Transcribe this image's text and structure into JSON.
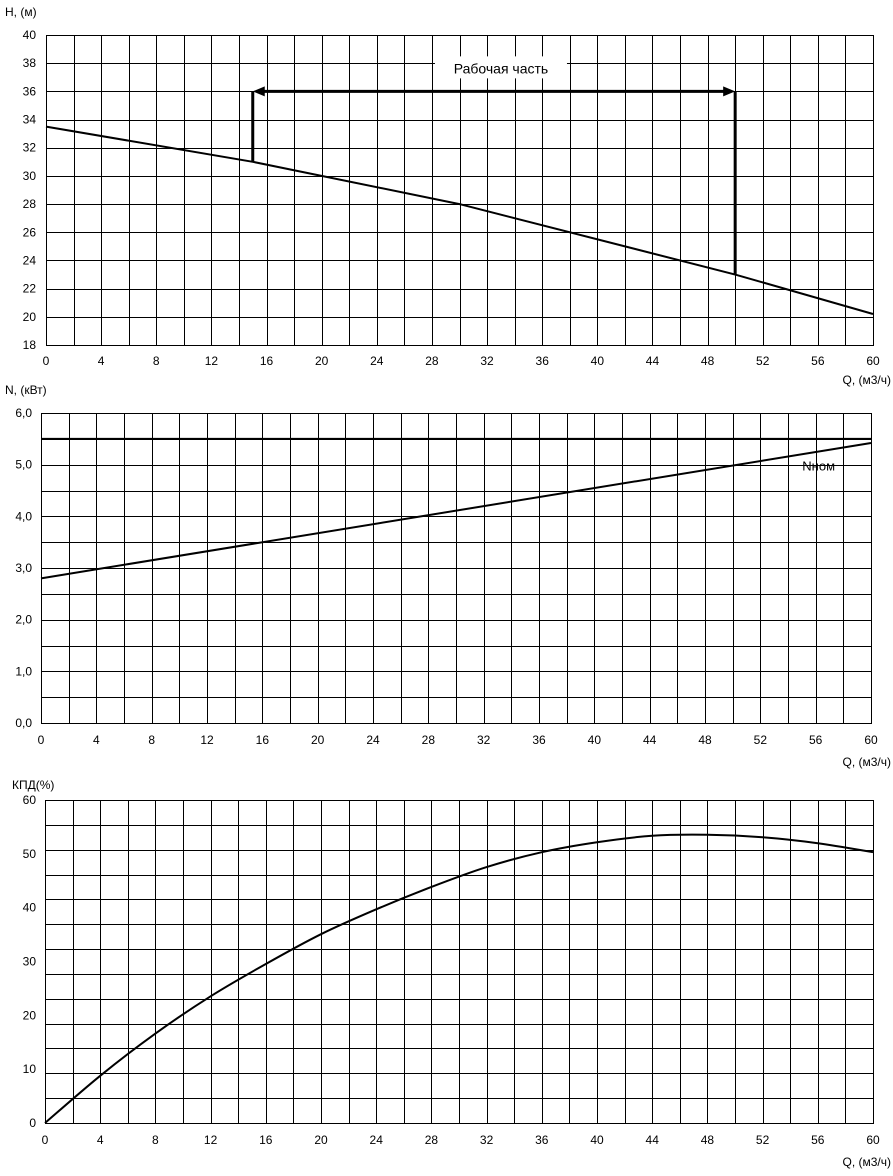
{
  "chart_data": [
    {
      "type": "line",
      "ylabel": "H, (м)",
      "xlabel": "Q, (м3/ч)",
      "xlim": [
        0,
        60
      ],
      "ylim": [
        18,
        40
      ],
      "x_ticks": [
        "0",
        "4",
        "8",
        "12",
        "16",
        "20",
        "24",
        "28",
        "32",
        "36",
        "40",
        "44",
        "48",
        "52",
        "56",
        "60"
      ],
      "y_ticks": [
        "18",
        "20",
        "22",
        "24",
        "26",
        "28",
        "30",
        "32",
        "34",
        "36",
        "38",
        "40"
      ],
      "grid": true,
      "series": [
        {
          "x": [
            0,
            15,
            30,
            50,
            60
          ],
          "y": [
            33.5,
            31.0,
            28.0,
            23.0,
            20.2
          ]
        }
      ],
      "annotation": {
        "text": "Рабочая часть",
        "x_start": 15,
        "x_end": 50,
        "y_level": 36,
        "y_start_curve": 31.0,
        "y_end_curve": 23.0
      }
    },
    {
      "type": "line",
      "ylabel": "N, (кВт)",
      "xlabel": "Q, (м3/ч)",
      "xlim": [
        0,
        60
      ],
      "ylim": [
        0,
        6
      ],
      "x_ticks": [
        "0",
        "4",
        "8",
        "12",
        "16",
        "20",
        "24",
        "28",
        "32",
        "36",
        "40",
        "44",
        "48",
        "52",
        "56",
        "60"
      ],
      "y_ticks": [
        "0,0",
        "1,0",
        "2,0",
        "3,0",
        "4,0",
        "5,0",
        "6,0"
      ],
      "grid": true,
      "series": [
        {
          "x": [
            0,
            60
          ],
          "y": [
            2.8,
            5.42
          ]
        },
        {
          "name": "Nном",
          "x": [
            0,
            60
          ],
          "y": [
            5.5,
            5.5
          ]
        }
      ]
    },
    {
      "type": "line",
      "ylabel": "КПД(%)",
      "xlabel": "Q, (м3/ч)",
      "xlim": [
        0,
        60
      ],
      "ylim": [
        0,
        65
      ],
      "x_ticks": [
        "0",
        "4",
        "8",
        "12",
        "16",
        "20",
        "24",
        "28",
        "32",
        "36",
        "40",
        "44",
        "48",
        "52",
        "56",
        "60"
      ],
      "y_ticks": [
        "0",
        "10",
        "20",
        "30",
        "40",
        "50",
        "60"
      ],
      "grid": true,
      "series": [
        {
          "x": [
            0,
            4,
            8,
            12,
            16,
            20,
            24,
            28,
            32,
            36,
            40,
            44,
            48,
            52,
            56,
            60
          ],
          "y": [
            0,
            9.5,
            18,
            25.5,
            32,
            38,
            43,
            47.5,
            51.5,
            54.5,
            56.5,
            57.8,
            58,
            57.5,
            56.3,
            54.5
          ]
        }
      ]
    }
  ]
}
